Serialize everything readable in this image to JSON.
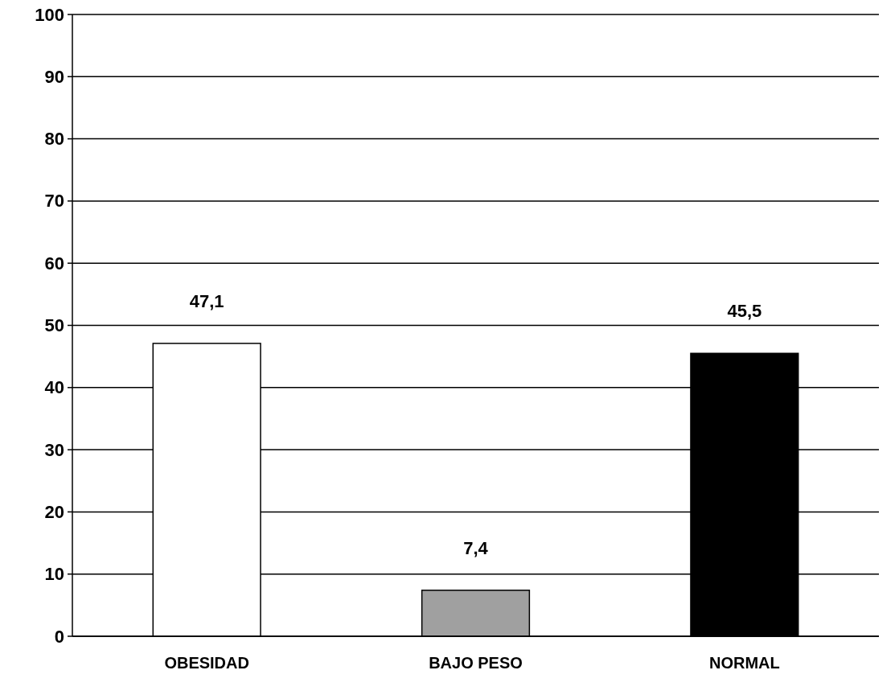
{
  "chart_data": {
    "type": "bar",
    "categories": [
      "OBESIDAD",
      "BAJO PESO",
      "NORMAL"
    ],
    "values": [
      47.1,
      7.4,
      45.5
    ],
    "colors": [
      "#ffffff",
      "#a0a0a0",
      "#000000"
    ],
    "ylim": [
      0,
      100
    ],
    "yticks": [
      0,
      10,
      20,
      30,
      40,
      50,
      60,
      70,
      80,
      90,
      100
    ],
    "grid": "y",
    "data_labels": true,
    "value_labels": [
      "47,1",
      "7,4",
      "45,5"
    ]
  }
}
